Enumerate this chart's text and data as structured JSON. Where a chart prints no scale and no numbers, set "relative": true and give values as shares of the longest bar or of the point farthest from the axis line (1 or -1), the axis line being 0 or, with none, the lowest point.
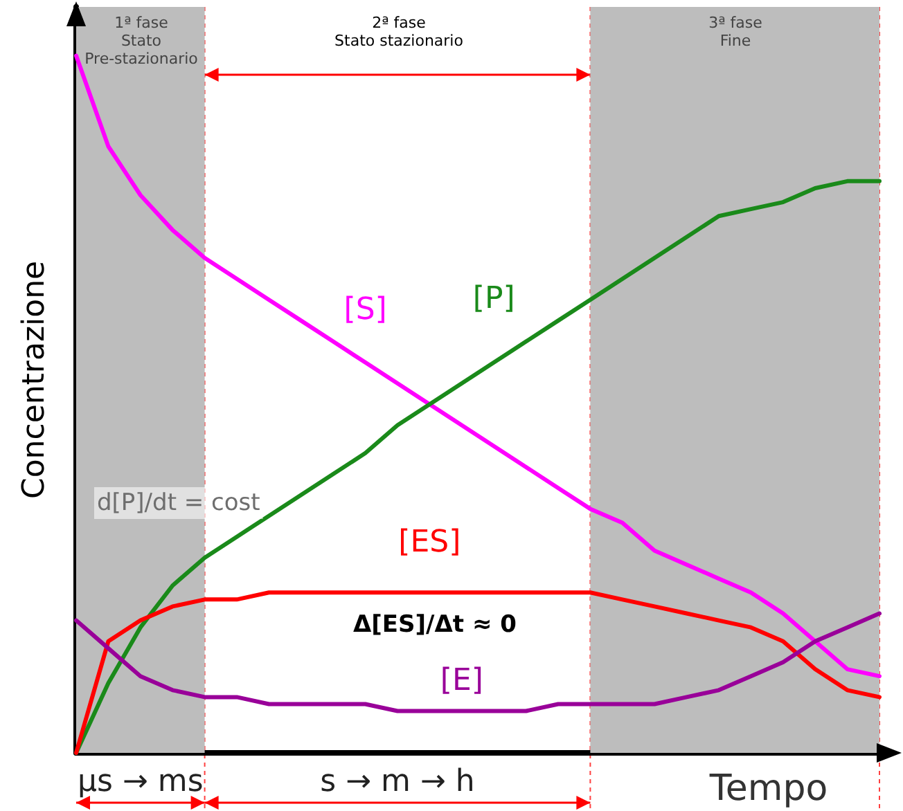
{
  "chart_data": {
    "type": "line",
    "relative": true,
    "xlabel": "Tempo",
    "ylabel": "Concentrazione",
    "categories": [
      null,
      null,
      "μs → ms",
      null,
      null,
      null,
      null,
      null,
      null,
      null,
      "s → m → h",
      null,
      null,
      null,
      null,
      null,
      null,
      null,
      null,
      null,
      null,
      null,
      null,
      null,
      null,
      null
    ],
    "tick_labels": "x",
    "legend": false,
    "marker": "none",
    "line_style": "solid",
    "series": [
      {
        "name": "[S]",
        "color": "#ff00ff",
        "values": [
          1.0,
          0.87,
          0.8,
          0.75,
          0.71,
          0.68,
          0.65,
          0.62,
          0.59,
          0.56,
          0.53,
          0.5,
          0.47,
          0.44,
          0.41,
          0.38,
          0.35,
          0.33,
          0.29,
          0.27,
          0.25,
          0.23,
          0.2,
          0.16,
          0.12,
          0.11
        ]
      },
      {
        "name": "[P]",
        "color": "#1a8a1a",
        "values": [
          0.0,
          0.1,
          0.18,
          0.24,
          0.28,
          0.31,
          0.34,
          0.37,
          0.4,
          0.43,
          0.47,
          0.5,
          0.53,
          0.56,
          0.59,
          0.62,
          0.65,
          0.68,
          0.71,
          0.74,
          0.77,
          0.78,
          0.79,
          0.81,
          0.82,
          0.82
        ]
      },
      {
        "name": "[ES]",
        "color": "#ff0000",
        "values": [
          0.0,
          0.16,
          0.19,
          0.21,
          0.22,
          0.22,
          0.23,
          0.23,
          0.23,
          0.23,
          0.23,
          0.23,
          0.23,
          0.23,
          0.23,
          0.23,
          0.23,
          0.22,
          0.21,
          0.2,
          0.19,
          0.18,
          0.16,
          0.12,
          0.09,
          0.08
        ]
      },
      {
        "name": "[E]",
        "color": "#990099",
        "values": [
          0.19,
          0.15,
          0.11,
          0.09,
          0.08,
          0.08,
          0.07,
          0.07,
          0.07,
          0.07,
          0.06,
          0.06,
          0.06,
          0.06,
          0.06,
          0.07,
          0.07,
          0.07,
          0.07,
          0.08,
          0.09,
          0.11,
          0.13,
          0.16,
          0.18,
          0.2
        ]
      }
    ],
    "annotations": [
      "d[P]/dt = cost",
      "Δ[ES]/Δt ≈ 0",
      "1ª fase\nStato\nPre-stazionario",
      "2ª fase\nStato stazionario",
      "3ª fase\nFine"
    ]
  }
}
